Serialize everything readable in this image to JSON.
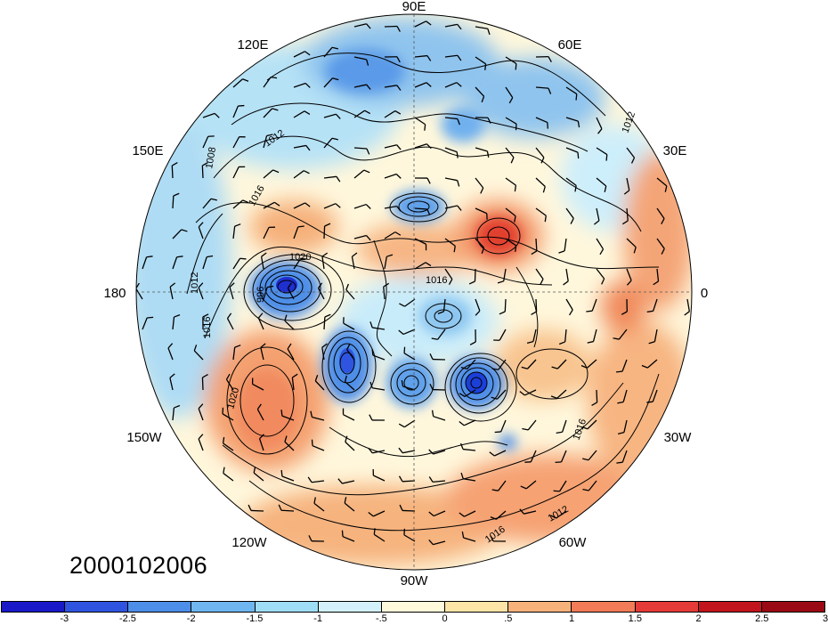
{
  "date_label": "2000102006",
  "longitude_labels": {
    "lon_90e": "90E",
    "lon_60e": "60E",
    "lon_30e": "30E",
    "lon_0": "0",
    "lon_30w": "30W",
    "lon_60w": "60W",
    "lon_90w": "90W",
    "lon_120w": "120W",
    "lon_150w": "150W",
    "lon_180": "180",
    "lon_150e": "150E",
    "lon_120e": "120E"
  },
  "contour_labels": [
    "1008",
    "1012",
    "1016",
    "1020",
    "1016",
    "1012",
    "1016",
    "1020",
    "1016",
    "1012",
    "1016",
    "996",
    "1012"
  ],
  "colorbar": {
    "colors": [
      "#1919c8",
      "#2f55e0",
      "#4d8ee8",
      "#6fb6f0",
      "#9fdcf6",
      "#d4f1fb",
      "#fffadc",
      "#fde5a8",
      "#f7b27c",
      "#f27c58",
      "#e53b38",
      "#c2141c",
      "#9a0a14"
    ],
    "ticks": [
      "-3",
      "-2.5",
      "-2",
      "-1.5",
      "-1",
      "-.5",
      "0",
      ".5",
      "1",
      "1.5",
      "2",
      "2.5",
      "3"
    ]
  }
}
